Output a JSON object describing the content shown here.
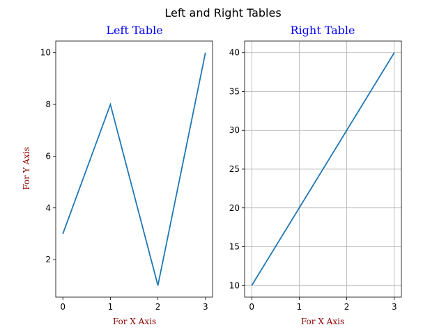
{
  "figure": {
    "title": "Left and Right Tables"
  },
  "chart_data": [
    {
      "type": "line",
      "title": "Left Table",
      "title_color": "#0000ff",
      "xlabel": "For X Axis",
      "ylabel": "For Y Axis",
      "label_color": "#8b0000",
      "line_color": "#1f77b4",
      "x": [
        0,
        1,
        2,
        3
      ],
      "series": [
        {
          "values": [
            3,
            8,
            1,
            10
          ]
        }
      ],
      "xlim": [
        -0.15,
        3.15
      ],
      "ylim": [
        0.55,
        10.45
      ],
      "xticks": [
        0,
        1,
        2,
        3
      ],
      "yticks": [
        2,
        4,
        6,
        8,
        10
      ],
      "grid": false
    },
    {
      "type": "line",
      "title": "Right Table",
      "title_color": "#0000ff",
      "xlabel": "For X Axis",
      "ylabel": "",
      "label_color": "#8b0000",
      "line_color": "#1f77b4",
      "x": [
        0,
        1,
        2,
        3
      ],
      "series": [
        {
          "values": [
            10,
            20,
            30,
            40
          ]
        }
      ],
      "xlim": [
        -0.15,
        3.15
      ],
      "ylim": [
        8.5,
        41.5
      ],
      "xticks": [
        0,
        1,
        2,
        3
      ],
      "yticks": [
        10,
        15,
        20,
        25,
        30,
        35,
        40
      ],
      "grid": true
    }
  ]
}
